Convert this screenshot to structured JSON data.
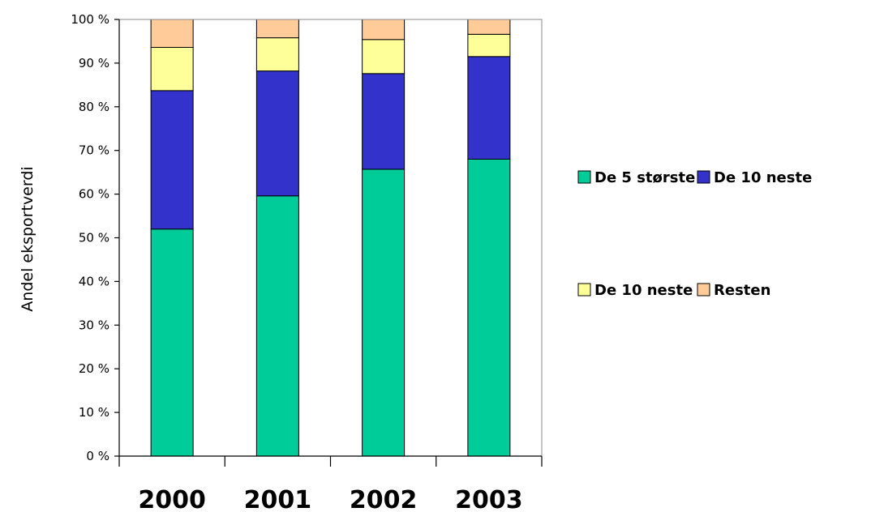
{
  "chart_data": {
    "type": "bar",
    "stacked": true,
    "percent_stacked": true,
    "categories": [
      "2000",
      "2001",
      "2002",
      "2003"
    ],
    "series": [
      {
        "name": "De 5 største",
        "color": "#00CC99",
        "values": [
          52,
          59.6,
          65.7,
          68
        ]
      },
      {
        "name": "De 10 neste",
        "color": "#3333CC",
        "values": [
          31.7,
          28.6,
          21.9,
          23.5
        ]
      },
      {
        "name": "De 10 neste",
        "color": "#FFFF99",
        "values": [
          9.9,
          7.6,
          7.8,
          5.1
        ]
      },
      {
        "name": "Resten",
        "color": "#FFCC99",
        "values": [
          6.4,
          4.2,
          4.6,
          3.4
        ]
      }
    ],
    "ylabel": "Andel eksportverdi",
    "xlabel": "",
    "ylim": [
      0,
      100
    ],
    "y_ticks": [
      "0 %",
      "10 %",
      "20 %",
      "30 %",
      "40 %",
      "50 %",
      "60 %",
      "70 %",
      "80 %",
      "90 %",
      "100 %"
    ],
    "grid": false,
    "legend_position": "right"
  }
}
